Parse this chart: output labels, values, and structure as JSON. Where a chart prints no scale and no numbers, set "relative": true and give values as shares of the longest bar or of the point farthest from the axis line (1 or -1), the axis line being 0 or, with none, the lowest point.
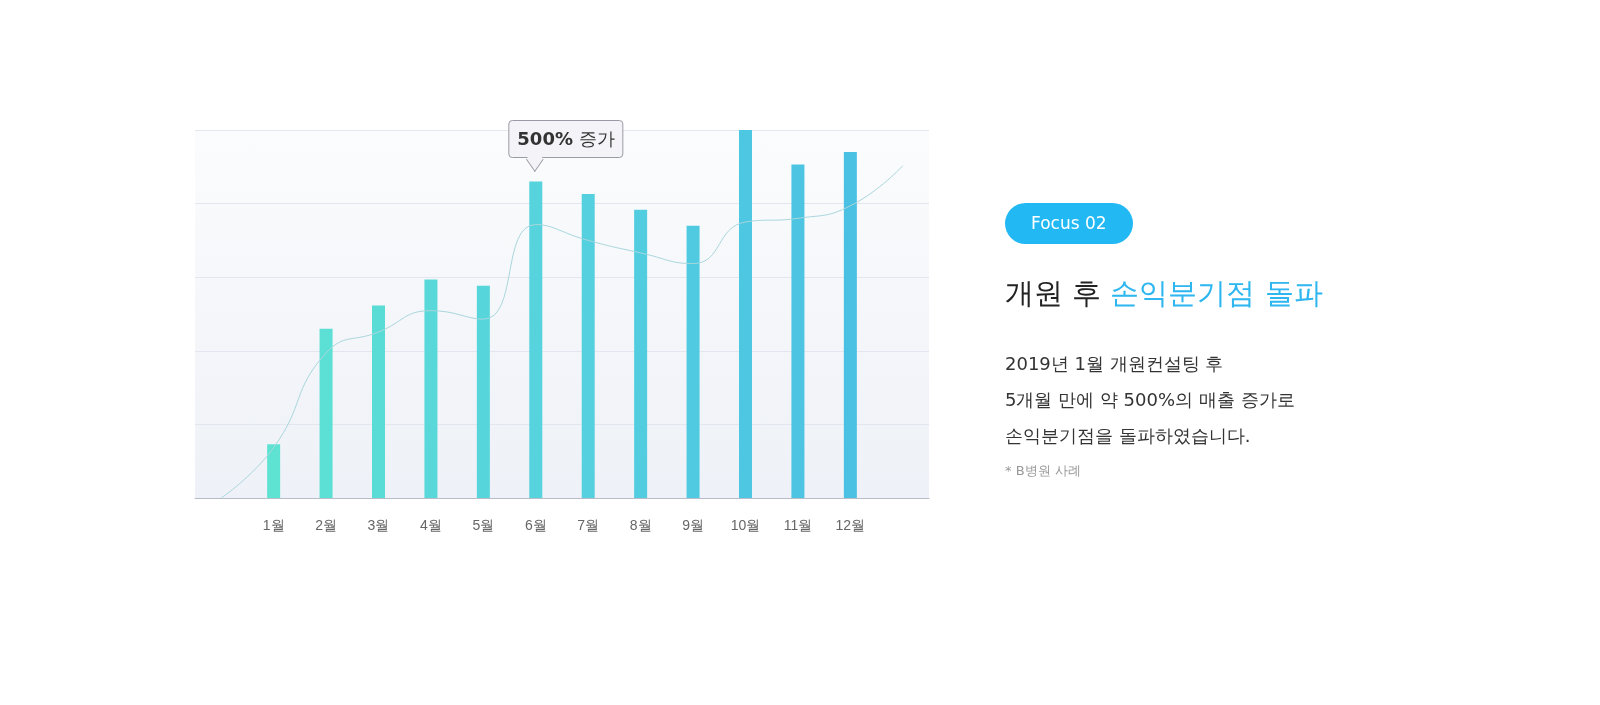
{
  "chart_data": {
    "type": "bar",
    "relative": true,
    "title": "개원 후 손익분기점 돌파",
    "subtitle": "2019년 1월 개원컨설팅 후\n5개월 만에 약 500%의 매출 증가로\n손익분기점을 돌파하였습니다.",
    "categories": [
      null,
      "1월",
      "2월",
      "3월",
      "4월",
      "5월",
      "6월",
      "7월",
      "8월",
      "9월",
      "10월",
      "11월",
      "12월",
      null
    ],
    "series": [
      {
        "colors": [
          "#5ee3d2",
          "#5ee3d2",
          "#5cdfd4",
          "#5adcd6",
          "#58d8d8",
          "#56d6db",
          "#56d3dc",
          "#54d0de",
          "#52cde0",
          "#50cae1",
          "#4ec7e2",
          "#4cc4e2",
          "#4ac0e2",
          "#4ac0e2"
        ],
        "values": [
          null,
          0.146,
          0.46,
          0.523,
          0.594,
          0.577,
          0.86,
          0.826,
          0.783,
          0.74,
          1,
          0.906,
          0.94,
          null
        ]
      },
      {
        "type": "line",
        "color": "#a9d6dc",
        "values": [
          0,
          0.137,
          0.394,
          0.451,
          0.509,
          0.486,
          0.743,
          0.7,
          0.666,
          0.637,
          0.75,
          0.76,
          0.794,
          0.903
        ]
      }
    ],
    "grid": "y",
    "annotations": [
      "Focus 02",
      "* B병원 사례",
      "500% 증가"
    ]
  }
}
